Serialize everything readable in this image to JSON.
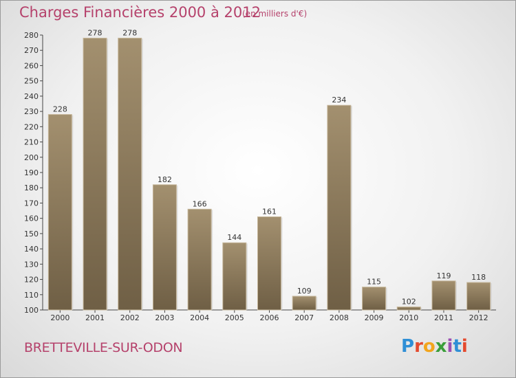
{
  "header": {
    "title": "Charges Financières 2000 à 2012",
    "subtitle": "(en milliers d'€)"
  },
  "footer": {
    "commune": "BRETTEVILLE-SUR-ODON",
    "logo": "Proxiti",
    "logo_colors": [
      "#2f8fd6",
      "#e44a2e",
      "#f2a51d",
      "#3a9e3a",
      "#9c4fb3",
      "#2f8fd6",
      "#e44a2e"
    ]
  },
  "chart_data": {
    "type": "bar",
    "categories": [
      "2000",
      "2001",
      "2002",
      "2003",
      "2004",
      "2005",
      "2006",
      "2007",
      "2008",
      "2009",
      "2010",
      "2011",
      "2012"
    ],
    "values": [
      228,
      278,
      278,
      182,
      166,
      144,
      161,
      109,
      234,
      115,
      102,
      119,
      118
    ],
    "title": "Charges Financières 2000 à 2012",
    "subtitle": "(en milliers d'€)",
    "xlabel": "",
    "ylabel": "",
    "ylim": [
      100,
      280
    ],
    "yticks": [
      100,
      110,
      120,
      130,
      140,
      150,
      160,
      170,
      180,
      190,
      200,
      210,
      220,
      230,
      240,
      250,
      260,
      270,
      280
    ],
    "grid": false,
    "data_labels": true,
    "bar_color": "#8c7a5e"
  }
}
